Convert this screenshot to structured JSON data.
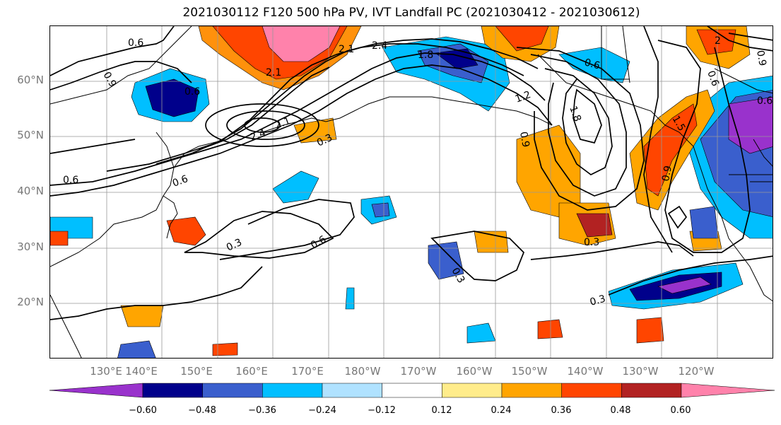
{
  "title": "2021030112 F120 500 hPa PV, IVT Landfall PC (2021030412 - 2021030612)",
  "lat_labels": [
    "60°N",
    "50°N",
    "40°N",
    "30°N",
    "20°N"
  ],
  "lon_labels": [
    "130°E",
    "140°E",
    "150°E",
    "160°E",
    "170°E",
    "180°W",
    "170°W",
    "160°W",
    "150°W",
    "140°W",
    "130°W",
    "120°W"
  ],
  "contour_labels": [
    "0.6",
    "0.9",
    "2.1",
    "2.4",
    "1.8",
    "2.1",
    "0.6",
    "0.6",
    "2.4",
    "2.1",
    "0.3",
    "0.6",
    "1.2",
    "0.9",
    "0.6",
    "1.8",
    "0.9",
    "0.6",
    "0.3",
    "0.6",
    "0.3",
    "0.3",
    "0.3",
    "0.9",
    "2",
    "0.6",
    "1.5"
  ],
  "colorbar": {
    "colors": [
      "#9932cc",
      "#00008b",
      "#3a5fcd",
      "#00bfff",
      "#b0e2ff",
      "#ffffff",
      "#ffec8b",
      "#ffa500",
      "#ff4500",
      "#b22222",
      "#ff82ab"
    ],
    "tick_labels": [
      "−0.60",
      "−0.48",
      "−0.36",
      "−0.24",
      "−0.12",
      "0.12",
      "0.24",
      "0.36",
      "0.48",
      "0.60"
    ]
  },
  "icons": {
    "coastline": "coastline-lines",
    "colorbar_arrows": "triangle-arrows"
  }
}
